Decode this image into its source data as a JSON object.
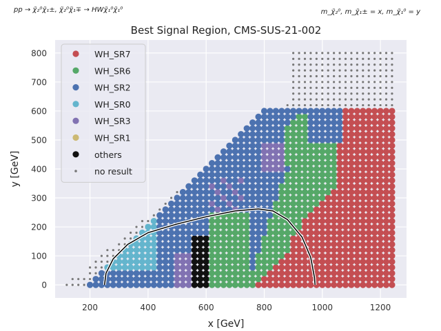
{
  "header": {
    "process": "pp → χ̃₂⁰χ̃₁±, χ̃₂⁰χ̃₁∓ → HWχ̃₁⁰χ̃₁⁰",
    "mass_relation": "m_χ̃₂⁰, m_χ̃₁± = x, m_χ̃₁⁰ = y"
  },
  "chart_data": {
    "type": "scatter",
    "title": "Best Signal Region, CMS-SUS-21-002",
    "xlabel": "x [GeV]",
    "ylabel": "y [GeV]",
    "xlim": [
      80,
      1290
    ],
    "ylim": [
      -45,
      845
    ],
    "xticks": [
      200,
      400,
      600,
      800,
      1000,
      1200
    ],
    "yticks": [
      0,
      100,
      200,
      300,
      400,
      500,
      600,
      700,
      800
    ],
    "grid": true,
    "legend_position": "top-left",
    "series": [
      {
        "name": "WH_SR7",
        "color": "#c44e52"
      },
      {
        "name": "WH_SR6",
        "color": "#55a868"
      },
      {
        "name": "WH_SR2",
        "color": "#4c72b0"
      },
      {
        "name": "WH_SR0",
        "color": "#64b5cd"
      },
      {
        "name": "WH_SR3",
        "color": "#8172b2"
      },
      {
        "name": "WH_SR1",
        "color": "#ccb974"
      },
      {
        "name": "others",
        "color": "#111111"
      },
      {
        "name": "no result",
        "color": "#777777"
      }
    ],
    "grid_points": {
      "x_step": 20,
      "y_step": 20,
      "x_range": [
        200,
        1250
      ],
      "y_range": [
        0,
        600
      ],
      "valid_region": "y <= x - 200",
      "assignment_note": "region boundaries approximate"
    },
    "no_result_region": {
      "x_range": [
        100,
        1250
      ],
      "y_range": [
        0,
        800
      ]
    },
    "exclusion_contour": [
      [
        250,
        0
      ],
      [
        255,
        40
      ],
      [
        280,
        90
      ],
      [
        330,
        140
      ],
      [
        400,
        180
      ],
      [
        500,
        210
      ],
      [
        600,
        235
      ],
      [
        700,
        255
      ],
      [
        780,
        262
      ],
      [
        830,
        255
      ],
      [
        880,
        225
      ],
      [
        930,
        165
      ],
      [
        960,
        95
      ],
      [
        973,
        25
      ],
      [
        975,
        0
      ]
    ]
  }
}
